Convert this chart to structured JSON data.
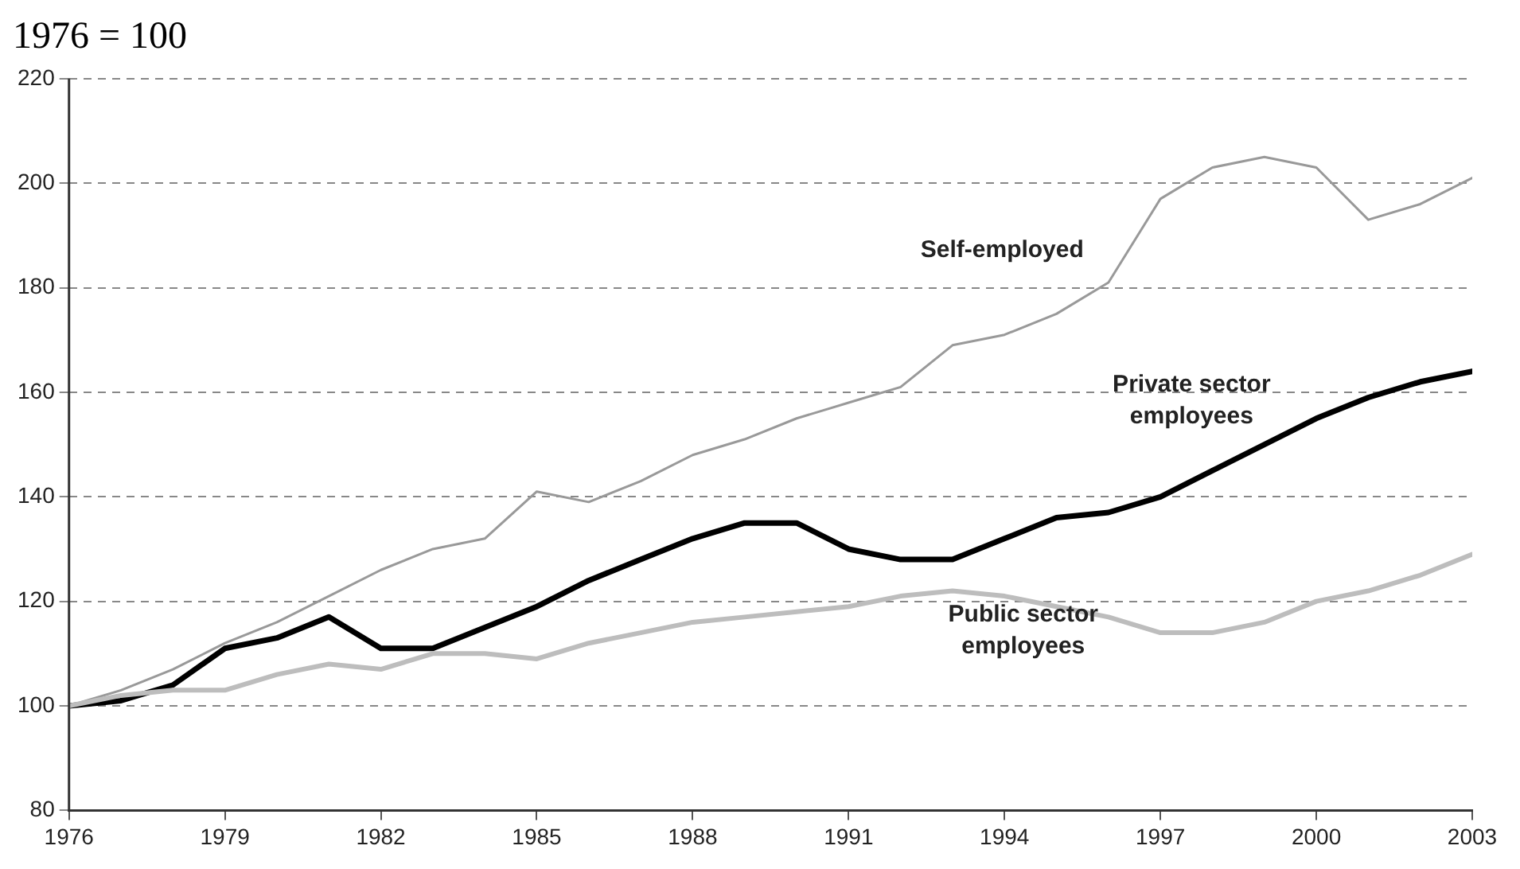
{
  "chart_data": {
    "type": "line",
    "title": "1976 = 100",
    "x": [
      1976,
      1977,
      1978,
      1979,
      1980,
      1981,
      1982,
      1983,
      1984,
      1985,
      1986,
      1987,
      1988,
      1989,
      1990,
      1991,
      1992,
      1993,
      1994,
      1995,
      1996,
      1997,
      1998,
      1999,
      2000,
      2001,
      2002,
      2003
    ],
    "series": [
      {
        "name": "Self-employed",
        "color": "#999999",
        "values": [
          100,
          103,
          107,
          112,
          116,
          121,
          126,
          130,
          132,
          141,
          139,
          143,
          148,
          151,
          155,
          158,
          161,
          169,
          171,
          175,
          181,
          197,
          203,
          205,
          203,
          193,
          196,
          201
        ]
      },
      {
        "name": "Private sector employees",
        "color": "#000000",
        "values": [
          100,
          101,
          104,
          111,
          113,
          117,
          111,
          111,
          115,
          119,
          124,
          128,
          132,
          135,
          135,
          130,
          128,
          128,
          132,
          136,
          137,
          140,
          145,
          150,
          155,
          159,
          162,
          164
        ]
      },
      {
        "name": "Public sector employees",
        "color": "#bdbdbd",
        "values": [
          100,
          102,
          103,
          103,
          106,
          108,
          107,
          110,
          110,
          109,
          112,
          114,
          116,
          117,
          118,
          119,
          121,
          122,
          121,
          119,
          117,
          114,
          114,
          116,
          120,
          122,
          125,
          129
        ]
      }
    ],
    "xlim": [
      1976,
      2003
    ],
    "xticks": [
      1976,
      1979,
      1982,
      1985,
      1988,
      1991,
      1994,
      1997,
      2000,
      2003
    ],
    "ylim": [
      80,
      220
    ],
    "yticks": [
      80,
      100,
      120,
      140,
      160,
      180,
      200,
      220
    ],
    "grid": "y",
    "legend": false,
    "marker": "none",
    "line_style": "solid"
  }
}
